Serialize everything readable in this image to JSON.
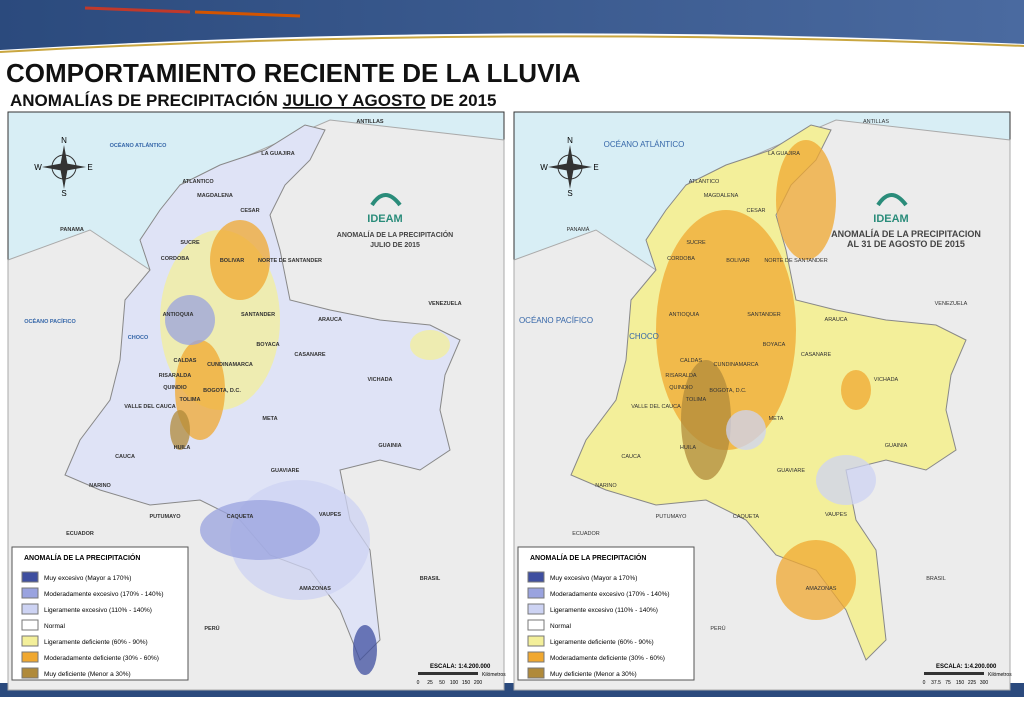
{
  "header": {
    "title": "COMPORTAMIENTO RECIENTE DE LA LLUVIA",
    "subtitle": {
      "before": "ANOMALÍAS DE PRECIPITACIÓN ",
      "underlined": "JULIO Y AGOSTO",
      "after": " DE 2015"
    }
  },
  "maps": [
    {
      "logo": "IDEAM",
      "title_lines": [
        "ANOMALÍA DE LA PRECIPITACIÓN",
        "JULIO DE 2015"
      ],
      "compass": [
        "N",
        "E",
        "S",
        "W"
      ],
      "labels": [
        "LA GUAJIRA",
        "ATLANTICO",
        "MAGDALENA",
        "CESAR",
        "SUCRE",
        "CORDOBA",
        "BOLIVAR",
        "NORTE DE SANTANDER",
        "ANTIOQUIA",
        "SANTANDER",
        "ARAUCA",
        "CHOCO",
        "BOYACA",
        "CASANARE",
        "CALDAS",
        "RISARALDA",
        "CUNDINAMARCA",
        "VICHADA",
        "QUINDIO",
        "TOLIMA",
        "BOGOTA, D.C.",
        "VALLE DEL CAUCA",
        "META",
        "GUAINIA",
        "HUILA",
        "CAUCA",
        "GUAVIARE",
        "NARINO",
        "CAQUETA",
        "VAUPES",
        "PUTUMAYO",
        "AMAZONAS",
        "ANTILLAS",
        "OCÉANO ATLÁNTICO",
        "PANAMA",
        "VENEZUELA",
        "OCÉANO PACÍFICO",
        "ECUADOR",
        "BRASIL",
        "PERÚ"
      ],
      "legend": {
        "title": "ANOMALÍA DE LA PRECIPITACIÓN",
        "items": [
          "Muy excesivo (Mayor a 170%)",
          "Moderadamente excesivo (170% - 140%)",
          "Ligeramente excesivo (110% - 140%)",
          "Normal",
          "Ligeramente deficiente (60% - 90%)",
          "Moderadamente deficiente (30% - 60%)",
          "Muy deficiente (Menor a 30%)"
        ]
      },
      "scale": {
        "label": "ESCALA: 1:4.200.000",
        "ticks": [
          0,
          25,
          50,
          100,
          150,
          200
        ],
        "unit": "Kilómetros"
      }
    },
    {
      "logo": "IDEAM",
      "title_lines": [
        "ANOMALÍA DE LA PRECIPITACION",
        "AL 31 DE AGOSTO DE 2015"
      ],
      "compass": [
        "N",
        "E",
        "S",
        "W"
      ],
      "labels": [
        "LA GUAJIRA",
        "ATLANTICO",
        "MAGDALENA",
        "CESAR",
        "SUCRE",
        "CORDOBA",
        "BOLIVAR",
        "NORTE DE SANTANDER",
        "ANTIOQUIA",
        "SANTANDER",
        "ARAUCA",
        "CHOCO",
        "BOYACA",
        "CASANARE",
        "CALDAS",
        "RISARALDA",
        "CUNDINAMARCA",
        "VICHADA",
        "QUINDIO",
        "TOLIMA",
        "BOGOTA, D.C.",
        "VALLE DEL CAUCA",
        "META",
        "GUAINIA",
        "HUILA",
        "CAUCA",
        "GUAVIARE",
        "NARINO",
        "CAQUETA",
        "VAUPES",
        "PUTUMAYO",
        "AMAZONAS",
        "ANTILLAS",
        "OCÉANO ATLÁNTICO",
        "PANAMÁ",
        "VENEZUELA",
        "OCÉANO PACÍFICO",
        "ECUADOR",
        "BRASIL",
        "PERÚ"
      ],
      "legend": {
        "title": "ANOMALÍA DE LA PRECIPITACIÓN",
        "items": [
          "Muy excesivo (Mayor a 170%)",
          "Moderadamente excesivo (170% - 140%)",
          "Ligeramente excesivo (110% - 140%)",
          "Normal",
          "Ligeramente deficiente (60% - 90%)",
          "Moderadamente deficiente (30% - 60%)",
          "Muy deficiente (Menor a 30%)"
        ]
      },
      "scale": {
        "label": "ESCALA: 1:4.200.000",
        "ticks": [
          0,
          37.5,
          75,
          150,
          225,
          300
        ],
        "unit": "Kilómetros"
      }
    }
  ]
}
